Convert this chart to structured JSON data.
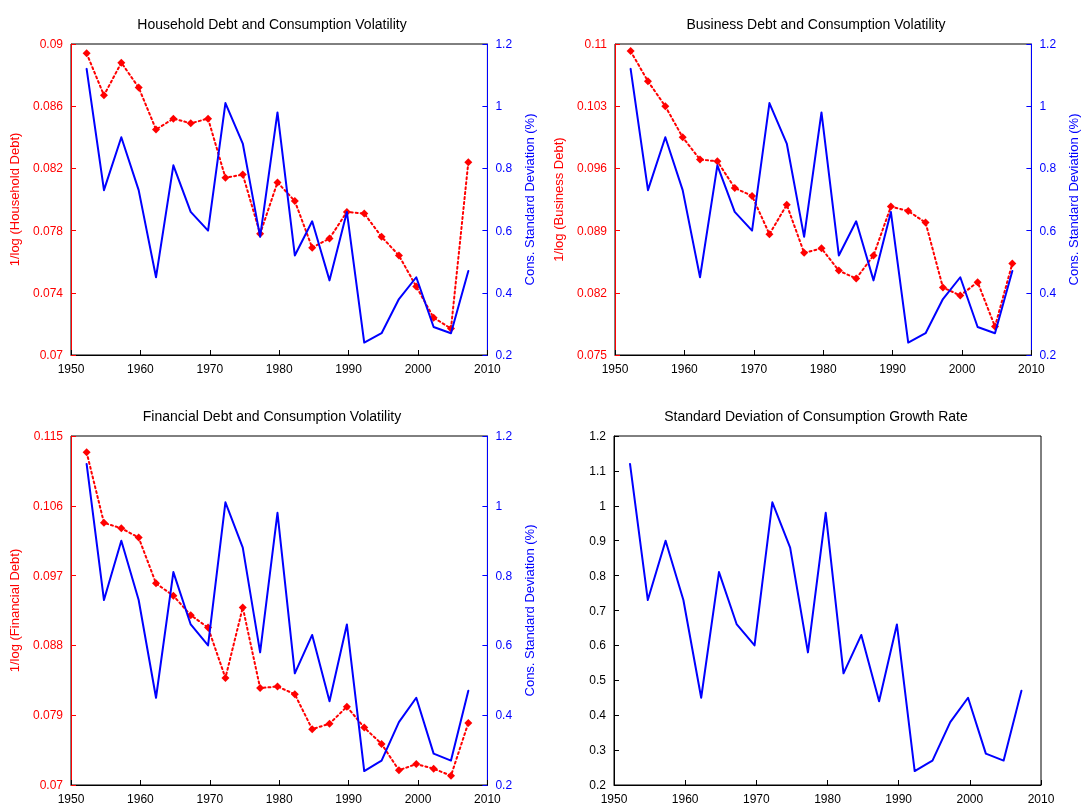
{
  "chart_data": [
    {
      "type": "line",
      "title": "Household Debt and Consumption Volatility",
      "ylabel": "1/log (Household Debt)",
      "y2label": "Cons. Standard Deviation (%)",
      "x": [
        1952.25,
        1954.75,
        1957.25,
        1959.75,
        1962.25,
        1964.75,
        1967.25,
        1969.75,
        1972.25,
        1974.75,
        1977.25,
        1979.75,
        1982.25,
        1984.75,
        1987.25,
        1989.75,
        1992.25,
        1994.75,
        1997.25,
        1999.75,
        2002.25,
        2004.75,
        2007.25
      ],
      "xlim": [
        1950,
        2010
      ],
      "xticks": [
        1950,
        1960,
        1970,
        1980,
        1990,
        2000,
        2010
      ],
      "ylim": [
        0.07,
        0.09
      ],
      "yticks": [
        0.07,
        0.074,
        0.078,
        0.082,
        0.086,
        0.09
      ],
      "y2lim": [
        0.2,
        1.2
      ],
      "y2ticks": [
        0.2,
        0.4,
        0.6,
        0.8,
        1,
        1.2
      ],
      "grid": false,
      "series": [
        {
          "color": "#ff0000",
          "marker": "diamond",
          "line_style": "dotted",
          "values": [
            0.0894,
            0.0867,
            0.0888,
            0.0872,
            0.0845,
            0.0852,
            0.0849,
            0.0852,
            0.0814,
            0.0816,
            0.0778,
            0.0811,
            0.0799,
            0.0769,
            0.0775,
            0.0792,
            0.0791,
            0.0776,
            0.0764,
            0.0744,
            0.0724,
            0.0717,
            0.0824
          ]
        },
        {
          "color": "#0000ff",
          "marker": "none",
          "line_style": "solid",
          "axis": "y2",
          "values": [
            1.12,
            0.73,
            0.9,
            0.73,
            0.45,
            0.81,
            0.66,
            0.6,
            1.01,
            0.88,
            0.58,
            0.98,
            0.52,
            0.63,
            0.44,
            0.66,
            0.24,
            0.27,
            0.38,
            0.45,
            0.29,
            0.27,
            0.47
          ]
        }
      ]
    },
    {
      "type": "line",
      "title": "Business Debt and Consumption Volatility",
      "ylabel": "1/log (Business Debt)",
      "y2label": "Cons. Standard Deviation (%)",
      "x": [
        1952.25,
        1954.75,
        1957.25,
        1959.75,
        1962.25,
        1964.75,
        1967.25,
        1969.75,
        1972.25,
        1974.75,
        1977.25,
        1979.75,
        1982.25,
        1984.75,
        1987.25,
        1989.75,
        1992.25,
        1994.75,
        1997.25,
        1999.75,
        2002.25,
        2004.75,
        2007.25
      ],
      "xlim": [
        1950,
        2010
      ],
      "xticks": [
        1950,
        1960,
        1970,
        1980,
        1990,
        2000,
        2010
      ],
      "ylim": [
        0.075,
        0.11
      ],
      "yticks": [
        0.075,
        0.082,
        0.089,
        0.096,
        0.103,
        0.11
      ],
      "y2lim": [
        0.2,
        1.2
      ],
      "y2ticks": [
        0.2,
        0.4,
        0.6,
        0.8,
        1,
        1.2
      ],
      "grid": false,
      "series": [
        {
          "color": "#ff0000",
          "marker": "diamond",
          "line_style": "dotted",
          "values": [
            0.1092,
            0.1058,
            0.103,
            0.0995,
            0.097,
            0.0968,
            0.0938,
            0.0929,
            0.0886,
            0.0919,
            0.0865,
            0.087,
            0.0845,
            0.0836,
            0.0862,
            0.0917,
            0.0912,
            0.0899,
            0.0826,
            0.0817,
            0.0832,
            0.0782,
            0.0853
          ]
        },
        {
          "color": "#0000ff",
          "marker": "none",
          "line_style": "solid",
          "axis": "y2",
          "values": [
            1.12,
            0.73,
            0.9,
            0.73,
            0.45,
            0.81,
            0.66,
            0.6,
            1.01,
            0.88,
            0.58,
            0.98,
            0.52,
            0.63,
            0.44,
            0.66,
            0.24,
            0.27,
            0.38,
            0.45,
            0.29,
            0.27,
            0.47
          ]
        }
      ]
    },
    {
      "type": "line",
      "title": "Financial Debt and Consumption Volatility",
      "ylabel": "1/log (Financial Debt)",
      "y2label": "Cons. Standard Deviation (%)",
      "x": [
        1952.25,
        1954.75,
        1957.25,
        1959.75,
        1962.25,
        1964.75,
        1967.25,
        1969.75,
        1972.25,
        1974.75,
        1977.25,
        1979.75,
        1982.25,
        1984.75,
        1987.25,
        1989.75,
        1992.25,
        1994.75,
        1997.25,
        1999.75,
        2002.25,
        2004.75,
        2007.25
      ],
      "xlim": [
        1950,
        2010
      ],
      "xticks": [
        1950,
        1960,
        1970,
        1980,
        1990,
        2000,
        2010
      ],
      "ylim": [
        0.07,
        0.115
      ],
      "yticks": [
        0.07,
        0.079,
        0.088,
        0.097,
        0.106,
        0.115
      ],
      "y2lim": [
        0.2,
        1.2
      ],
      "y2ticks": [
        0.2,
        0.4,
        0.6,
        0.8,
        1,
        1.2
      ],
      "grid": false,
      "series": [
        {
          "color": "#ff0000",
          "marker": "diamond",
          "line_style": "dotted",
          "values": [
            0.1129,
            0.1038,
            0.1031,
            0.1019,
            0.096,
            0.0944,
            0.0919,
            0.0903,
            0.0838,
            0.0929,
            0.0825,
            0.0827,
            0.0817,
            0.0772,
            0.0779,
            0.0801,
            0.0774,
            0.0753,
            0.0719,
            0.0727,
            0.0721,
            0.0712,
            0.078
          ]
        },
        {
          "color": "#0000ff",
          "marker": "none",
          "line_style": "solid",
          "axis": "y2",
          "values": [
            1.12,
            0.73,
            0.9,
            0.73,
            0.45,
            0.81,
            0.66,
            0.6,
            1.01,
            0.88,
            0.58,
            0.98,
            0.52,
            0.63,
            0.44,
            0.66,
            0.24,
            0.27,
            0.38,
            0.45,
            0.29,
            0.27,
            0.47
          ]
        }
      ]
    },
    {
      "type": "line",
      "title": "Standard Deviation of Consumption Growth Rate",
      "x": [
        1952.25,
        1954.75,
        1957.25,
        1959.75,
        1962.25,
        1964.75,
        1967.25,
        1969.75,
        1972.25,
        1974.75,
        1977.25,
        1979.75,
        1982.25,
        1984.75,
        1987.25,
        1989.75,
        1992.25,
        1994.75,
        1997.25,
        1999.75,
        2002.25,
        2004.75,
        2007.25
      ],
      "xlim": [
        1950,
        2010
      ],
      "xticks": [
        1950,
        1960,
        1970,
        1980,
        1990,
        2000,
        2010
      ],
      "ylim": [
        0.2,
        1.2
      ],
      "yticks": [
        0.2,
        0.3,
        0.4,
        0.5,
        0.6,
        0.7,
        0.8,
        0.9,
        1,
        1.1,
        1.2
      ],
      "grid": false,
      "series": [
        {
          "color": "#0000ff",
          "marker": "none",
          "line_style": "solid",
          "values": [
            1.12,
            0.73,
            0.9,
            0.73,
            0.45,
            0.81,
            0.66,
            0.6,
            1.01,
            0.88,
            0.58,
            0.98,
            0.52,
            0.63,
            0.44,
            0.66,
            0.24,
            0.27,
            0.38,
            0.45,
            0.29,
            0.27,
            0.47
          ]
        }
      ]
    }
  ]
}
